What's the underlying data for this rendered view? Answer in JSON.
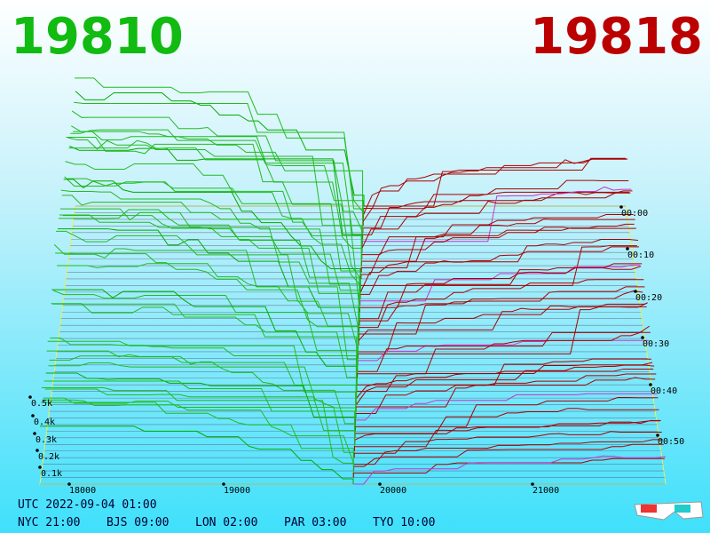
{
  "header": {
    "bid": "19810",
    "ask": "19818"
  },
  "price_axis": [
    "18000",
    "19000",
    "20000",
    "21000"
  ],
  "time_axis": [
    "00:00",
    "00:10",
    "00:20",
    "00:30",
    "00:40",
    "00:50"
  ],
  "depth_axis": [
    "0.5k",
    "0.4k",
    "0.3k",
    "0.2k",
    "0.1k"
  ],
  "footer": {
    "utc": "UTC 2022-09-04 01:00",
    "cities": [
      "NYC 21:00",
      "BJS 09:00",
      "LON 02:00",
      "PAR 03:00",
      "TYO 10:00"
    ]
  }
}
